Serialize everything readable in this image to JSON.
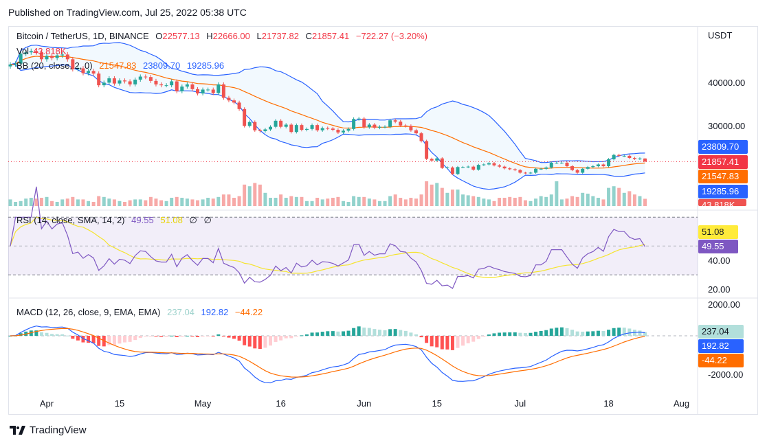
{
  "header": {
    "published": "Published on TradingView.com, Jul 25, 2022 05:38 UTC"
  },
  "legend": {
    "symbol": "Bitcoin / TetherUS, 1D, BINANCE",
    "open_label": "O",
    "open": "22577.13",
    "high_label": "H",
    "high": "22666.00",
    "low_label": "L",
    "low": "21737.82",
    "close_label": "C",
    "close": "21857.41",
    "change": "−722.27 (−3.20%)",
    "vol_label": "Vol",
    "vol": "43.818K",
    "bb_label": "BB (20, close, 2, 0)",
    "bb_basis": "21547.83",
    "bb_upper": "23809.70",
    "bb_lower": "19285.96",
    "rsi_label": "RSI (14, close, SMA, 14, 2)",
    "rsi": "49.55",
    "rsi_ma": "51.08",
    "rsi_extra1": "∅",
    "rsi_extra2": "∅",
    "macd_label": "MACD (12, 26, close, 9, EMA, EMA)",
    "macd_hist": "237.04",
    "macd": "192.82",
    "macd_signal": "−44.22"
  },
  "price_axis": {
    "currency": "USDT",
    "ticks": [
      "40000.00",
      "30000.00"
    ],
    "tags": {
      "bb_upper": "23809.70",
      "last": "21857.41",
      "bb_basis": "21547.83",
      "bb_lower": "19285.96",
      "volume": "43.818K"
    }
  },
  "rsi_axis": {
    "ticks": [
      "40.00",
      "20.00"
    ],
    "tags": {
      "rsi_ma": "51.08",
      "rsi": "49.55"
    }
  },
  "macd_axis": {
    "ticks": [
      "2000.00",
      "-2000.00"
    ],
    "tags": {
      "hist": "237.04",
      "macd": "192.82",
      "signal": "-44.22"
    }
  },
  "time_axis": {
    "ticks": [
      "Apr",
      "15",
      "May",
      "16",
      "Jun",
      "15",
      "Jul",
      "18",
      "Aug"
    ]
  },
  "brand": {
    "name": "TradingView"
  },
  "colors": {
    "up": "#26a69a",
    "down": "#ef5350",
    "bb_band": "#2962ff",
    "bb_basis": "#ff6d00",
    "rsi": "#7e57c2",
    "rsi_ma": "#f5e42f",
    "macd": "#2962ff",
    "signal": "#ff6d00"
  },
  "chart_data": {
    "type": "candlestick",
    "symbol": "Bitcoin / TetherUS",
    "interval": "1D",
    "price_ylim": [
      11600,
      52850
    ],
    "last_candle": {
      "open": 22577.13,
      "high": 22666.0,
      "low": 21737.82,
      "close": 21857.41,
      "volume_k": 43.818
    },
    "indicators": [
      "Vol",
      "BB (20, close, 2, 0)",
      "RSI (14, close, SMA, 14, 2)",
      "MACD (12, 26, close, 9, EMA, EMA)"
    ],
    "rsi_bands": [
      30,
      70
    ],
    "x_ticks": [
      [
        "2022-04-01",
        "Apr"
      ],
      [
        "2022-04-15",
        "15"
      ],
      [
        "2022-05-01",
        "May"
      ],
      [
        "2022-05-16",
        "16"
      ],
      [
        "2022-06-01",
        "Jun"
      ],
      [
        "2022-06-15",
        "15"
      ],
      [
        "2022-07-01",
        "Jul"
      ],
      [
        "2022-07-18",
        "18"
      ],
      [
        "2022-08-01",
        "Aug"
      ]
    ],
    "candles_date_close_volk": [
      [
        "2022-03-25",
        44300,
        40
      ],
      [
        "2022-03-26",
        44500,
        25
      ],
      [
        "2022-03-27",
        46800,
        30
      ],
      [
        "2022-03-28",
        47100,
        45
      ],
      [
        "2022-03-29",
        47400,
        50
      ],
      [
        "2022-03-30",
        47100,
        45
      ],
      [
        "2022-03-31",
        45500,
        50
      ],
      [
        "2022-04-01",
        46300,
        55
      ],
      [
        "2022-04-02",
        45800,
        30
      ],
      [
        "2022-04-03",
        46400,
        25
      ],
      [
        "2022-04-04",
        46600,
        40
      ],
      [
        "2022-04-05",
        45500,
        45
      ],
      [
        "2022-04-06",
        43200,
        55
      ],
      [
        "2022-04-07",
        43400,
        40
      ],
      [
        "2022-04-08",
        42300,
        40
      ],
      [
        "2022-04-09",
        42800,
        30
      ],
      [
        "2022-04-10",
        42200,
        25
      ],
      [
        "2022-04-11",
        39500,
        60
      ],
      [
        "2022-04-12",
        40100,
        55
      ],
      [
        "2022-04-13",
        41100,
        45
      ],
      [
        "2022-04-14",
        39900,
        40
      ],
      [
        "2022-04-15",
        40600,
        30
      ],
      [
        "2022-04-16",
        40400,
        25
      ],
      [
        "2022-04-17",
        39700,
        35
      ],
      [
        "2022-04-18",
        40800,
        40
      ],
      [
        "2022-04-19",
        41500,
        40
      ],
      [
        "2022-04-20",
        41400,
        35
      ],
      [
        "2022-04-21",
        40500,
        55
      ],
      [
        "2022-04-22",
        39700,
        45
      ],
      [
        "2022-04-23",
        39500,
        35
      ],
      [
        "2022-04-24",
        39500,
        30
      ],
      [
        "2022-04-25",
        40400,
        50
      ],
      [
        "2022-04-26",
        38100,
        55
      ],
      [
        "2022-04-27",
        39200,
        50
      ],
      [
        "2022-04-28",
        39700,
        45
      ],
      [
        "2022-04-29",
        38600,
        40
      ],
      [
        "2022-04-30",
        37600,
        35
      ],
      [
        "2022-05-01",
        38500,
        40
      ],
      [
        "2022-05-02",
        38500,
        50
      ],
      [
        "2022-05-03",
        37700,
        45
      ],
      [
        "2022-05-04",
        39700,
        55
      ],
      [
        "2022-05-05",
        36600,
        70
      ],
      [
        "2022-05-06",
        36000,
        70
      ],
      [
        "2022-05-07",
        35500,
        50
      ],
      [
        "2022-05-08",
        34000,
        60
      ],
      [
        "2022-05-09",
        30100,
        130
      ],
      [
        "2022-05-10",
        31000,
        120
      ],
      [
        "2022-05-11",
        29100,
        140
      ],
      [
        "2022-05-12",
        28900,
        130
      ],
      [
        "2022-05-13",
        29300,
        80
      ],
      [
        "2022-05-14",
        29900,
        50
      ],
      [
        "2022-05-15",
        31300,
        50
      ],
      [
        "2022-05-16",
        29900,
        70
      ],
      [
        "2022-05-17",
        30400,
        50
      ],
      [
        "2022-05-18",
        28700,
        60
      ],
      [
        "2022-05-19",
        30300,
        55
      ],
      [
        "2022-05-20",
        29200,
        55
      ],
      [
        "2022-05-21",
        29400,
        30
      ],
      [
        "2022-05-22",
        30300,
        30
      ],
      [
        "2022-05-23",
        29100,
        50
      ],
      [
        "2022-05-24",
        29600,
        40
      ],
      [
        "2022-05-25",
        29500,
        45
      ],
      [
        "2022-05-26",
        29200,
        50
      ],
      [
        "2022-05-27",
        28600,
        55
      ],
      [
        "2022-05-28",
        29000,
        30
      ],
      [
        "2022-05-29",
        29400,
        25
      ],
      [
        "2022-05-30",
        31700,
        60
      ],
      [
        "2022-05-31",
        31800,
        55
      ],
      [
        "2022-06-01",
        29800,
        55
      ],
      [
        "2022-06-02",
        30400,
        45
      ],
      [
        "2022-06-03",
        29700,
        40
      ],
      [
        "2022-06-04",
        29900,
        30
      ],
      [
        "2022-06-05",
        29900,
        30
      ],
      [
        "2022-06-06",
        31400,
        60
      ],
      [
        "2022-06-07",
        31100,
        70
      ],
      [
        "2022-06-08",
        30200,
        50
      ],
      [
        "2022-06-09",
        30100,
        40
      ],
      [
        "2022-06-10",
        29100,
        50
      ],
      [
        "2022-06-11",
        28400,
        45
      ],
      [
        "2022-06-12",
        26600,
        70
      ],
      [
        "2022-06-13",
        22500,
        150
      ],
      [
        "2022-06-14",
        22100,
        130
      ],
      [
        "2022-06-15",
        22600,
        140
      ],
      [
        "2022-06-16",
        20400,
        110
      ],
      [
        "2022-06-17",
        20500,
        80
      ],
      [
        "2022-06-18",
        19000,
        100
      ],
      [
        "2022-06-19",
        20600,
        100
      ],
      [
        "2022-06-20",
        20600,
        70
      ],
      [
        "2022-06-21",
        20700,
        65
      ],
      [
        "2022-06-22",
        20000,
        60
      ],
      [
        "2022-06-23",
        21100,
        55
      ],
      [
        "2022-06-24",
        21200,
        45
      ],
      [
        "2022-06-25",
        21500,
        40
      ],
      [
        "2022-06-26",
        21000,
        30
      ],
      [
        "2022-06-27",
        20700,
        50
      ],
      [
        "2022-06-28",
        20300,
        50
      ],
      [
        "2022-06-29",
        20100,
        55
      ],
      [
        "2022-06-30",
        19900,
        50
      ],
      [
        "2022-07-01",
        19300,
        55
      ],
      [
        "2022-07-02",
        19200,
        35
      ],
      [
        "2022-07-03",
        19300,
        30
      ],
      [
        "2022-07-04",
        20200,
        45
      ],
      [
        "2022-07-05",
        20200,
        60
      ],
      [
        "2022-07-06",
        20500,
        55
      ],
      [
        "2022-07-07",
        21600,
        70
      ],
      [
        "2022-07-08",
        21600,
        150
      ],
      [
        "2022-07-09",
        21600,
        40
      ],
      [
        "2022-07-10",
        20800,
        45
      ],
      [
        "2022-07-11",
        19900,
        60
      ],
      [
        "2022-07-12",
        19300,
        55
      ],
      [
        "2022-07-13",
        20200,
        80
      ],
      [
        "2022-07-14",
        20600,
        75
      ],
      [
        "2022-07-15",
        20800,
        60
      ],
      [
        "2022-07-16",
        21200,
        50
      ],
      [
        "2022-07-17",
        20800,
        40
      ],
      [
        "2022-07-18",
        22400,
        110
      ],
      [
        "2022-07-19",
        23400,
        120
      ],
      [
        "2022-07-20",
        23200,
        110
      ],
      [
        "2022-07-21",
        23200,
        80
      ],
      [
        "2022-07-22",
        22700,
        90
      ],
      [
        "2022-07-23",
        22500,
        70
      ],
      [
        "2022-07-24",
        22577.13,
        60
      ],
      [
        "2022-07-25",
        21857.41,
        43.818
      ]
    ]
  }
}
